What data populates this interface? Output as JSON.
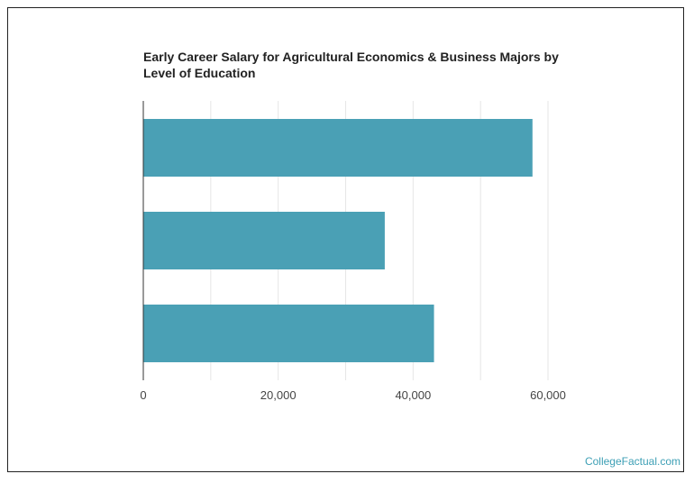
{
  "chart_data": {
    "type": "bar",
    "orientation": "horizontal",
    "title": "Early Career Salary for Agricultural Economics & Business Majors by Level of Education",
    "categories": [
      "",
      "",
      ""
    ],
    "values": [
      57700,
      35800,
      43100
    ],
    "xlim": [
      0,
      60000
    ],
    "xticks": [
      0,
      20000,
      40000,
      60000
    ],
    "xtick_labels": [
      "0",
      "20,000",
      "40,000",
      "60,000"
    ],
    "grid": true,
    "bar_color": "#4aa0b5",
    "grid_color": "#e6e6e6"
  },
  "watermark": "CollegeFactual.com"
}
